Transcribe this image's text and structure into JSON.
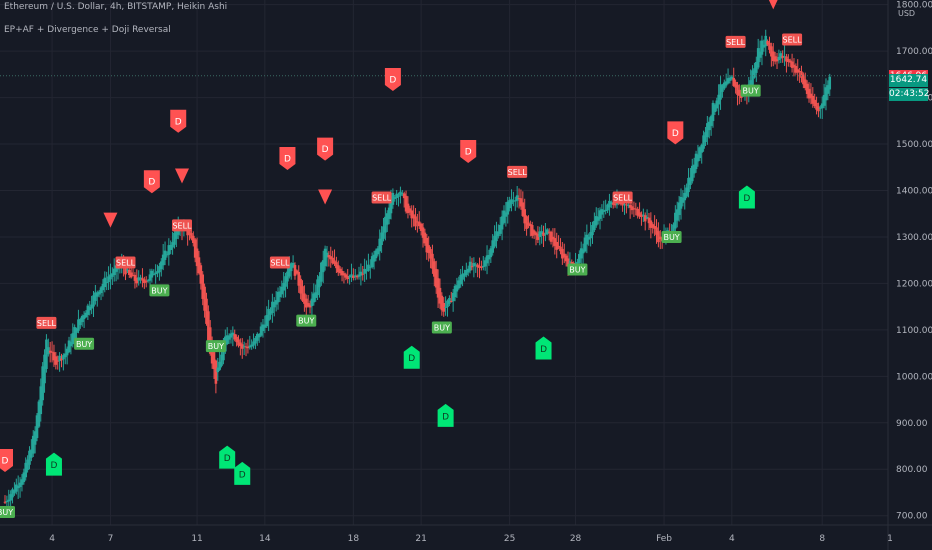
{
  "header": {
    "title": "Ethereum / U.S. Dollar, 4h, BITSTAMP, Heikin Ashi",
    "indicator": "EP+AF + Divergence + Doji Reversal"
  },
  "price_axis": {
    "currency": "USD"
  },
  "price_tags": [
    {
      "id": "last-price",
      "value": "1646.96",
      "price": 1646.96,
      "color": "#f23645"
    },
    {
      "id": "current-price",
      "value": "1642.74",
      "price": 1642.74,
      "color": "#089981"
    },
    {
      "id": "countdown",
      "value": "02:43:52",
      "price": 1610,
      "color": "#089981"
    }
  ],
  "colors": {
    "up": "#26a69a",
    "down": "#ef5350",
    "sell_bg": "#ef5350",
    "buy_bg": "#4caf50",
    "div_bull": "#00e676",
    "div_bear": "#ff5252",
    "grid": "#232632",
    "text": "#b2b5be"
  },
  "chart_data": {
    "type": "candlestick",
    "title": "Ethereum / U.S. Dollar, 4h, BITSTAMP, Heikin Ashi",
    "ylim": [
      680,
      1810
    ],
    "y_ticks": [
      700,
      800,
      900,
      1000,
      1100,
      1200,
      1300,
      1400,
      1500,
      1600,
      1700,
      1800
    ],
    "x_ticks": [
      {
        "label": "4",
        "x": 15.5
      },
      {
        "label": "7",
        "x": 31
      },
      {
        "label": "11",
        "x": 54
      },
      {
        "label": "14",
        "x": 72
      },
      {
        "label": "18",
        "x": 95.5
      },
      {
        "label": "21",
        "x": 113.5
      },
      {
        "label": "25",
        "x": 137
      },
      {
        "label": "28",
        "x": 154.5
      },
      {
        "label": "Feb",
        "x": 178
      },
      {
        "label": "4",
        "x": 196
      },
      {
        "label": "8",
        "x": 220
      },
      {
        "label": "1",
        "x": 238
      }
    ],
    "x_range": [
      3,
      238
    ],
    "last_x": 222,
    "price_path": [
      [
        3,
        730
      ],
      [
        8,
        790
      ],
      [
        11,
        880
      ],
      [
        14,
        1080
      ],
      [
        16,
        1030
      ],
      [
        19,
        1050
      ],
      [
        22,
        1110
      ],
      [
        25,
        1150
      ],
      [
        28,
        1190
      ],
      [
        31,
        1220
      ],
      [
        34,
        1240
      ],
      [
        36,
        1215
      ],
      [
        38,
        1205
      ],
      [
        41,
        1210
      ],
      [
        44,
        1240
      ],
      [
        46,
        1270
      ],
      [
        49,
        1320
      ],
      [
        51,
        1320
      ],
      [
        53,
        1280
      ],
      [
        55,
        1200
      ],
      [
        57,
        1080
      ],
      [
        59,
        990
      ],
      [
        61,
        1070
      ],
      [
        63,
        1100
      ],
      [
        66,
        1060
      ],
      [
        69,
        1070
      ],
      [
        72,
        1120
      ],
      [
        75,
        1170
      ],
      [
        77,
        1210
      ],
      [
        79,
        1250
      ],
      [
        81,
        1200
      ],
      [
        83,
        1140
      ],
      [
        85,
        1170
      ],
      [
        88,
        1270
      ],
      [
        90,
        1240
      ],
      [
        93,
        1220
      ],
      [
        96,
        1210
      ],
      [
        99,
        1230
      ],
      [
        102,
        1270
      ],
      [
        104,
        1350
      ],
      [
        106,
        1390
      ],
      [
        108,
        1400
      ],
      [
        110,
        1350
      ],
      [
        113,
        1320
      ],
      [
        116,
        1250
      ],
      [
        119,
        1140
      ],
      [
        121,
        1160
      ],
      [
        123,
        1200
      ],
      [
        126,
        1240
      ],
      [
        129,
        1230
      ],
      [
        131,
        1260
      ],
      [
        133,
        1300
      ],
      [
        135,
        1340
      ],
      [
        137,
        1380
      ],
      [
        139,
        1390
      ],
      [
        141,
        1330
      ],
      [
        144,
        1300
      ],
      [
        147,
        1310
      ],
      [
        150,
        1270
      ],
      [
        153,
        1240
      ],
      [
        155,
        1250
      ],
      [
        157,
        1290
      ],
      [
        160,
        1340
      ],
      [
        163,
        1370
      ],
      [
        166,
        1380
      ],
      [
        169,
        1360
      ],
      [
        172,
        1350
      ],
      [
        175,
        1320
      ],
      [
        177,
        1290
      ],
      [
        180,
        1320
      ],
      [
        183,
        1390
      ],
      [
        186,
        1460
      ],
      [
        189,
        1530
      ],
      [
        191,
        1580
      ],
      [
        193,
        1620
      ],
      [
        196,
        1640
      ],
      [
        198,
        1600
      ],
      [
        200,
        1610
      ],
      [
        203,
        1700
      ],
      [
        205,
        1730
      ],
      [
        207,
        1680
      ],
      [
        209,
        1690
      ],
      [
        212,
        1670
      ],
      [
        214,
        1650
      ],
      [
        217,
        1590
      ],
      [
        219,
        1570
      ],
      [
        222,
        1643
      ]
    ],
    "signals": [
      {
        "type": "SELL",
        "x": 14,
        "price": 1115
      },
      {
        "type": "SELL",
        "x": 35,
        "price": 1245
      },
      {
        "type": "SELL",
        "x": 50,
        "price": 1325
      },
      {
        "type": "SELL",
        "x": 76,
        "price": 1245
      },
      {
        "type": "SELL",
        "x": 103,
        "price": 1385
      },
      {
        "type": "SELL",
        "x": 139,
        "price": 1440
      },
      {
        "type": "SELL",
        "x": 167,
        "price": 1385
      },
      {
        "type": "SELL",
        "x": 197,
        "price": 1720
      },
      {
        "type": "SELL",
        "x": 212,
        "price": 1725
      },
      {
        "type": "BUY",
        "x": 3,
        "price": 708
      },
      {
        "type": "BUY",
        "x": 24,
        "price": 1070
      },
      {
        "type": "BUY",
        "x": 44,
        "price": 1185
      },
      {
        "type": "BUY",
        "x": 59,
        "price": 1065
      },
      {
        "type": "BUY",
        "x": 83,
        "price": 1120
      },
      {
        "type": "BUY",
        "x": 119,
        "price": 1105
      },
      {
        "type": "BUY",
        "x": 155,
        "price": 1230
      },
      {
        "type": "BUY",
        "x": 180,
        "price": 1300
      },
      {
        "type": "BUY",
        "x": 201,
        "price": 1615
      }
    ],
    "divergences": [
      {
        "dir": "bear",
        "x": 3,
        "price": 820
      },
      {
        "dir": "bear",
        "x": 42,
        "price": 1420
      },
      {
        "dir": "bear",
        "x": 49,
        "price": 1550
      },
      {
        "dir": "bear",
        "x": 78,
        "price": 1470
      },
      {
        "dir": "bear",
        "x": 88,
        "price": 1490
      },
      {
        "dir": "bear",
        "x": 106,
        "price": 1640
      },
      {
        "dir": "bear",
        "x": 126,
        "price": 1485
      },
      {
        "dir": "bear",
        "x": 181,
        "price": 1525
      },
      {
        "dir": "bull",
        "x": 16,
        "price": 810
      },
      {
        "dir": "bull",
        "x": 62,
        "price": 825
      },
      {
        "dir": "bull",
        "x": 66,
        "price": 790
      },
      {
        "dir": "bull",
        "x": 111,
        "price": 1040
      },
      {
        "dir": "bull",
        "x": 120,
        "price": 915
      },
      {
        "dir": "bull",
        "x": 146,
        "price": 1060
      },
      {
        "dir": "bull",
        "x": 200,
        "price": 1385
      }
    ],
    "reversals": [
      {
        "x": 31,
        "price": 1335
      },
      {
        "x": 50,
        "price": 1430
      },
      {
        "x": 88,
        "price": 1385
      },
      {
        "x": 207,
        "price": 1805
      }
    ]
  }
}
